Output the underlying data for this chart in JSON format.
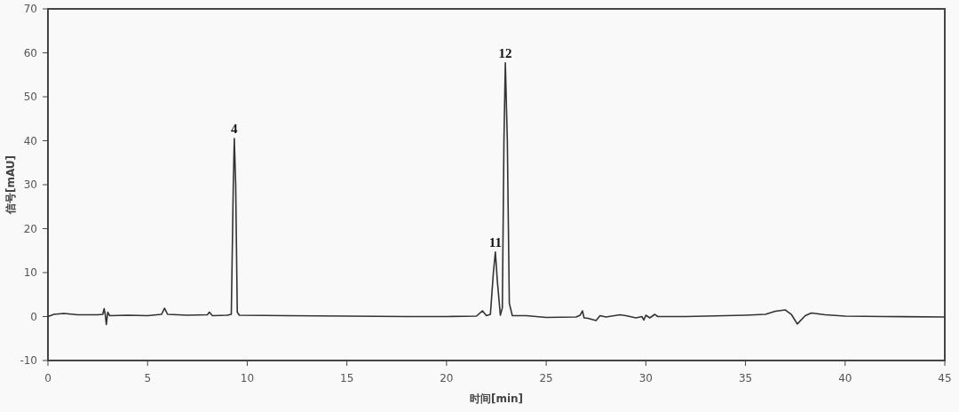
{
  "chart_data": {
    "type": "line",
    "xlabel": "时间[min]",
    "ylabel": "信号[mAU]",
    "xlim": [
      0,
      45
    ],
    "ylim": [
      -10,
      70
    ],
    "xticks": [
      0,
      5,
      10,
      15,
      20,
      25,
      30,
      35,
      40,
      45
    ],
    "yticks": [
      -10,
      0,
      10,
      20,
      30,
      40,
      50,
      60,
      70
    ],
    "series": [
      {
        "color": "#333333",
        "x": [
          0,
          0.3,
          0.8,
          1.5,
          2.5,
          2.75,
          2.82,
          2.88,
          2.93,
          3.0,
          3.1,
          4.0,
          5.0,
          5.7,
          5.85,
          6.0,
          7.0,
          8.0,
          8.1,
          8.25,
          9.0,
          9.2,
          9.3,
          9.35,
          9.42,
          9.5,
          9.6,
          12,
          15,
          18,
          20,
          21.5,
          21.8,
          22.0,
          22.2,
          22.35,
          22.45,
          22.55,
          22.7,
          22.8,
          22.88,
          22.95,
          23.05,
          23.15,
          23.3,
          24,
          25,
          26.5,
          26.7,
          26.82,
          26.9,
          27.1,
          27.5,
          27.7,
          28,
          28.7,
          29,
          29.5,
          29.8,
          29.9,
          30,
          30.2,
          30.45,
          30.6,
          32,
          34,
          35,
          36,
          36.5,
          37,
          37.3,
          37.6,
          38.0,
          38.3,
          39,
          40,
          42,
          45
        ],
        "values": [
          0,
          0.5,
          0.7,
          0.4,
          0.4,
          0.5,
          1.8,
          0.3,
          -1.8,
          1.0,
          0.2,
          0.3,
          0.2,
          0.5,
          1.9,
          0.5,
          0.3,
          0.4,
          1.0,
          0.2,
          0.3,
          0.5,
          30,
          40.5,
          30,
          1,
          0.3,
          0.2,
          0.1,
          0,
          0,
          0.1,
          1.3,
          0.2,
          0.5,
          10,
          14.7,
          8,
          0.3,
          2,
          40,
          57.7,
          40,
          3,
          0.2,
          0.2,
          -0.2,
          -0.1,
          0.3,
          1.3,
          -0.3,
          -0.4,
          -0.9,
          0.2,
          -0.1,
          0.4,
          0.2,
          -0.3,
          0,
          -0.8,
          0.3,
          -0.3,
          0.5,
          0,
          0,
          0.2,
          0.3,
          0.5,
          1.2,
          1.5,
          0.5,
          -1.7,
          0.2,
          0.8,
          0.4,
          0.1,
          0,
          -0.1
        ]
      }
    ],
    "annotations": [
      {
        "text": "4",
        "x": 9.35,
        "y": 40.5
      },
      {
        "text": "11",
        "x": 22.45,
        "y": 14.7
      },
      {
        "text": "12",
        "x": 22.95,
        "y": 57.7
      }
    ]
  }
}
